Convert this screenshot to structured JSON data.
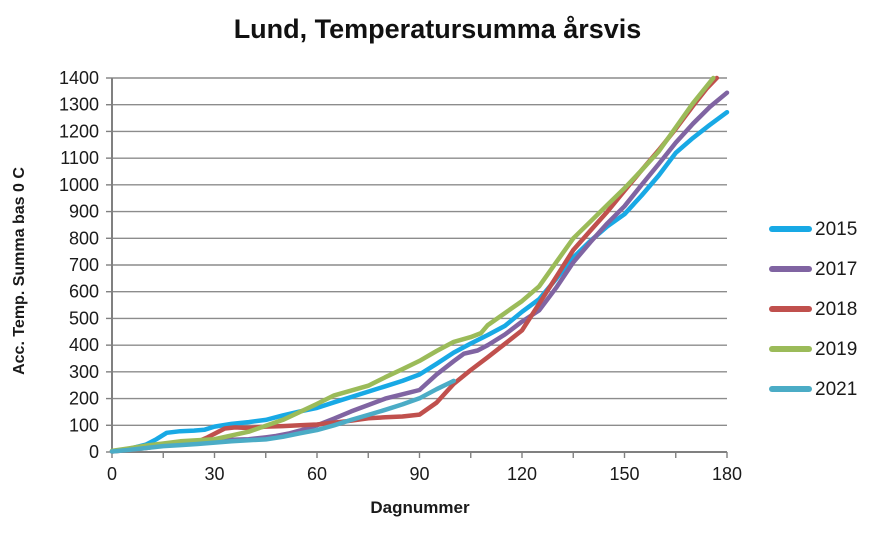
{
  "chart_data": {
    "type": "line",
    "title": "Lund, Temperatursumma årsvis",
    "xlabel": "Dagnummer",
    "ylabel": "Acc. Temp. Summa bas 0 C",
    "xlim": [
      0,
      180
    ],
    "ylim": [
      0,
      1400
    ],
    "x_ticks": [
      0,
      30,
      60,
      90,
      120,
      150,
      180
    ],
    "x_minor_tick_step": 15,
    "y_ticks": [
      0,
      100,
      200,
      300,
      400,
      500,
      600,
      700,
      800,
      900,
      1000,
      1100,
      1200,
      1300,
      1400
    ],
    "grid": "horizontal-only",
    "legend_position": "right",
    "axis_color": "#808080",
    "gridline_color": "#8c8c8c",
    "tick_label_color": "#1a1a1a",
    "series": [
      {
        "name": "2015",
        "color": "#18A9E5",
        "points": [
          [
            0,
            3
          ],
          [
            5,
            12
          ],
          [
            10,
            28
          ],
          [
            13,
            48
          ],
          [
            16,
            72
          ],
          [
            20,
            78
          ],
          [
            24,
            80
          ],
          [
            27,
            83
          ],
          [
            30,
            95
          ],
          [
            35,
            105
          ],
          [
            40,
            112
          ],
          [
            45,
            120
          ],
          [
            50,
            137
          ],
          [
            55,
            152
          ],
          [
            60,
            165
          ],
          [
            65,
            186
          ],
          [
            70,
            206
          ],
          [
            75,
            226
          ],
          [
            80,
            246
          ],
          [
            85,
            266
          ],
          [
            90,
            290
          ],
          [
            95,
            330
          ],
          [
            100,
            372
          ],
          [
            105,
            406
          ],
          [
            110,
            438
          ],
          [
            115,
            472
          ],
          [
            120,
            525
          ],
          [
            125,
            572
          ],
          [
            130,
            648
          ],
          [
            135,
            728
          ],
          [
            140,
            790
          ],
          [
            145,
            845
          ],
          [
            150,
            890
          ],
          [
            155,
            960
          ],
          [
            160,
            1035
          ],
          [
            165,
            1120
          ],
          [
            170,
            1175
          ],
          [
            175,
            1225
          ],
          [
            180,
            1272
          ]
        ]
      },
      {
        "name": "2017",
        "color": "#8064A2",
        "points": [
          [
            0,
            3
          ],
          [
            5,
            10
          ],
          [
            10,
            18
          ],
          [
            15,
            28
          ],
          [
            20,
            35
          ],
          [
            25,
            40
          ],
          [
            30,
            44
          ],
          [
            35,
            46
          ],
          [
            40,
            48
          ],
          [
            45,
            55
          ],
          [
            48,
            60
          ],
          [
            52,
            70
          ],
          [
            55,
            80
          ],
          [
            60,
            100
          ],
          [
            65,
            125
          ],
          [
            70,
            152
          ],
          [
            75,
            176
          ],
          [
            80,
            200
          ],
          [
            85,
            216
          ],
          [
            90,
            232
          ],
          [
            95,
            290
          ],
          [
            100,
            340
          ],
          [
            103,
            368
          ],
          [
            107,
            380
          ],
          [
            110,
            400
          ],
          [
            115,
            440
          ],
          [
            120,
            488
          ],
          [
            125,
            530
          ],
          [
            130,
            615
          ],
          [
            135,
            710
          ],
          [
            140,
            785
          ],
          [
            145,
            856
          ],
          [
            150,
            920
          ],
          [
            155,
            1000
          ],
          [
            160,
            1078
          ],
          [
            165,
            1158
          ],
          [
            170,
            1228
          ],
          [
            175,
            1292
          ],
          [
            180,
            1345
          ]
        ]
      },
      {
        "name": "2018",
        "color": "#C0504D",
        "points": [
          [
            0,
            2
          ],
          [
            5,
            8
          ],
          [
            10,
            15
          ],
          [
            15,
            25
          ],
          [
            20,
            32
          ],
          [
            25,
            38
          ],
          [
            28,
            55
          ],
          [
            31,
            75
          ],
          [
            33,
            88
          ],
          [
            36,
            92
          ],
          [
            40,
            90
          ],
          [
            45,
            95
          ],
          [
            50,
            97
          ],
          [
            55,
            100
          ],
          [
            60,
            103
          ],
          [
            65,
            110
          ],
          [
            70,
            117
          ],
          [
            75,
            126
          ],
          [
            80,
            130
          ],
          [
            85,
            133
          ],
          [
            90,
            140
          ],
          [
            95,
            185
          ],
          [
            100,
            255
          ],
          [
            105,
            307
          ],
          [
            110,
            355
          ],
          [
            115,
            405
          ],
          [
            120,
            455
          ],
          [
            125,
            555
          ],
          [
            130,
            655
          ],
          [
            135,
            756
          ],
          [
            140,
            828
          ],
          [
            145,
            900
          ],
          [
            150,
            978
          ],
          [
            155,
            1055
          ],
          [
            160,
            1130
          ],
          [
            165,
            1210
          ],
          [
            170,
            1295
          ],
          [
            174,
            1360
          ],
          [
            177,
            1400
          ]
        ]
      },
      {
        "name": "2019",
        "color": "#9BBB59",
        "points": [
          [
            0,
            4
          ],
          [
            5,
            14
          ],
          [
            10,
            24
          ],
          [
            15,
            32
          ],
          [
            20,
            40
          ],
          [
            25,
            44
          ],
          [
            30,
            48
          ],
          [
            35,
            62
          ],
          [
            40,
            76
          ],
          [
            45,
            98
          ],
          [
            50,
            120
          ],
          [
            55,
            150
          ],
          [
            60,
            180
          ],
          [
            65,
            212
          ],
          [
            70,
            230
          ],
          [
            75,
            248
          ],
          [
            80,
            280
          ],
          [
            85,
            310
          ],
          [
            90,
            341
          ],
          [
            95,
            378
          ],
          [
            100,
            412
          ],
          [
            105,
            430
          ],
          [
            108,
            445
          ],
          [
            110,
            475
          ],
          [
            115,
            520
          ],
          [
            120,
            565
          ],
          [
            125,
            620
          ],
          [
            130,
            710
          ],
          [
            135,
            800
          ],
          [
            140,
            862
          ],
          [
            145,
            925
          ],
          [
            150,
            987
          ],
          [
            155,
            1055
          ],
          [
            160,
            1125
          ],
          [
            165,
            1215
          ],
          [
            170,
            1305
          ],
          [
            176,
            1400
          ]
        ]
      },
      {
        "name": "2021",
        "color": "#4BACC6",
        "points": [
          [
            0,
            2
          ],
          [
            5,
            8
          ],
          [
            10,
            15
          ],
          [
            15,
            22
          ],
          [
            20,
            26
          ],
          [
            25,
            30
          ],
          [
            30,
            35
          ],
          [
            35,
            40
          ],
          [
            40,
            44
          ],
          [
            45,
            47
          ],
          [
            50,
            57
          ],
          [
            55,
            70
          ],
          [
            60,
            82
          ],
          [
            65,
            100
          ],
          [
            70,
            120
          ],
          [
            75,
            139
          ],
          [
            80,
            158
          ],
          [
            85,
            178
          ],
          [
            90,
            201
          ],
          [
            95,
            235
          ],
          [
            100,
            266
          ]
        ]
      }
    ]
  }
}
